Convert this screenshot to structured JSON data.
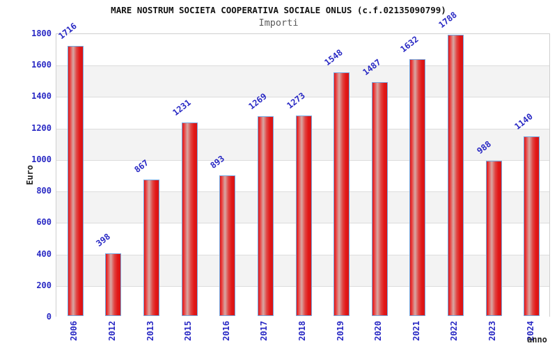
{
  "chart_data": {
    "type": "bar",
    "title": "MARE NOSTRUM SOCIETA COOPERATIVA SOCIALE ONLUS (c.f.02135090799)",
    "subtitle": "Importi",
    "xlabel": "anno",
    "ylabel": "Euro",
    "categories": [
      "2006",
      "2012",
      "2013",
      "2015",
      "2016",
      "2017",
      "2018",
      "2019",
      "2020",
      "2021",
      "2022",
      "2023",
      "2024"
    ],
    "values": [
      1716,
      398,
      867,
      1231,
      893,
      1269,
      1273,
      1548,
      1487,
      1632,
      1788,
      988,
      1140
    ],
    "ylim": [
      0,
      1800
    ],
    "ytick_step": 200,
    "grid": "horizontal-bands-alternating",
    "legend": "none",
    "bar_labels_rotation_deg": -38,
    "xtick_rotation_deg": -90,
    "colors": {
      "bar_fill_edge": "#e21717",
      "bar_fill_highlight": "#d8a8a4",
      "bar_border": "#74a7e0",
      "axis_text": "#2929c4",
      "title_text": "#111111",
      "subtitle_text": "#5a5a5a",
      "band_alt": "#f3f3f3",
      "band_main": "#ffffff",
      "gridline": "#dcdcdc",
      "plot_border": "#cfcfcf"
    }
  }
}
